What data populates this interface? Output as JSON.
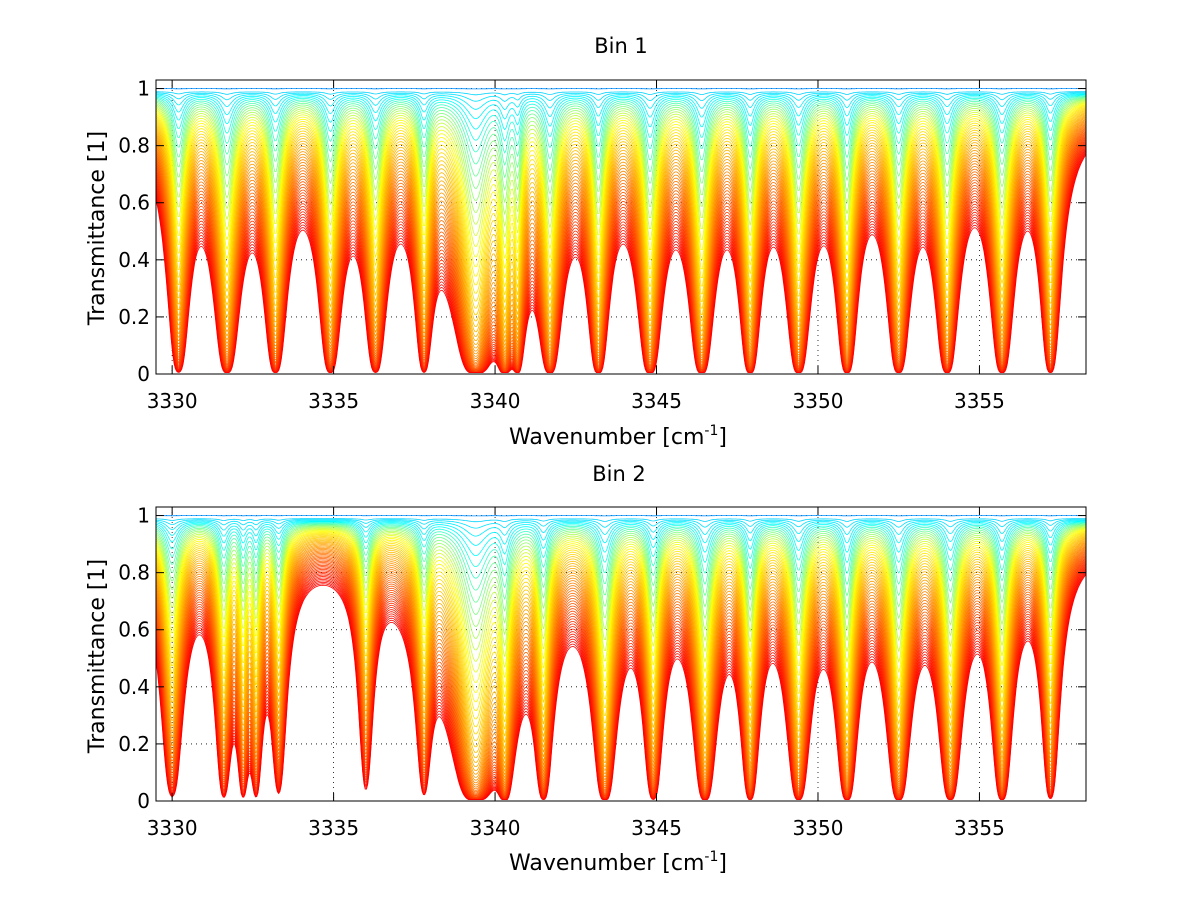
{
  "chart_data": [
    {
      "type": "line",
      "title": "Bin 1",
      "xlabel": "Wavenumber [cm",
      "xlabel_superscript": "-1",
      "xlabel_suffix": "]",
      "ylabel": "Transmittance [1]",
      "xlim": [
        3329.5,
        3358.3
      ],
      "ylim": [
        0,
        1.03
      ],
      "xticks": [
        3330,
        3335,
        3340,
        3345,
        3350,
        3355
      ],
      "xtick_labels": [
        "3330",
        "3335",
        "3340",
        "3345",
        "3350",
        "3355"
      ],
      "yticks": [
        0,
        0.2,
        0.4,
        0.6,
        0.8,
        1
      ],
      "ytick_labels": [
        "0",
        "0.2",
        "0.4",
        "0.6",
        "0.8",
        "1"
      ],
      "grid": true,
      "n_curves": 60,
      "colormap": [
        "#0000ff",
        "#00bfff",
        "#00ffff",
        "#ffff00",
        "#ff8000",
        "#ff0000"
      ],
      "absorption_lines": [
        {
          "x": 3330.2,
          "depth": 0.75,
          "width": 0.18
        },
        {
          "x": 3331.7,
          "depth": 0.85,
          "width": 0.2
        },
        {
          "x": 3333.2,
          "depth": 0.8,
          "width": 0.18
        },
        {
          "x": 3334.9,
          "depth": 0.8,
          "width": 0.18
        },
        {
          "x": 3336.3,
          "depth": 0.75,
          "width": 0.18
        },
        {
          "x": 3337.8,
          "depth": 0.7,
          "width": 0.15
        },
        {
          "x": 3339.4,
          "depth": 1.0,
          "width": 0.35
        },
        {
          "x": 3340.3,
          "depth": 0.85,
          "width": 0.15
        },
        {
          "x": 3340.7,
          "depth": 0.7,
          "width": 0.12
        },
        {
          "x": 3341.7,
          "depth": 0.9,
          "width": 0.18
        },
        {
          "x": 3343.2,
          "depth": 0.9,
          "width": 0.16
        },
        {
          "x": 3344.8,
          "depth": 0.95,
          "width": 0.18
        },
        {
          "x": 3346.4,
          "depth": 0.95,
          "width": 0.18
        },
        {
          "x": 3347.9,
          "depth": 0.9,
          "width": 0.16
        },
        {
          "x": 3349.4,
          "depth": 0.9,
          "width": 0.18
        },
        {
          "x": 3350.9,
          "depth": 0.9,
          "width": 0.16
        },
        {
          "x": 3352.5,
          "depth": 0.85,
          "width": 0.18
        },
        {
          "x": 3354.0,
          "depth": 0.85,
          "width": 0.18
        },
        {
          "x": 3355.7,
          "depth": 0.85,
          "width": 0.18
        },
        {
          "x": 3357.2,
          "depth": 0.8,
          "width": 0.16
        }
      ]
    },
    {
      "type": "line",
      "title": "Bin 2",
      "xlabel": "Wavenumber [cm",
      "xlabel_superscript": "-1",
      "xlabel_suffix": "]",
      "ylabel": "Transmittance [1]",
      "xlim": [
        3329.5,
        3358.3
      ],
      "ylim": [
        0,
        1.03
      ],
      "xticks": [
        3330,
        3335,
        3340,
        3345,
        3350,
        3355
      ],
      "xtick_labels": [
        "3330",
        "3335",
        "3340",
        "3345",
        "3350",
        "3355"
      ],
      "yticks": [
        0,
        0.2,
        0.4,
        0.6,
        0.8,
        1
      ],
      "ytick_labels": [
        "0",
        "0.2",
        "0.4",
        "0.6",
        "0.8",
        "1"
      ],
      "grid": true,
      "n_curves": 60,
      "colormap": [
        "#0000ff",
        "#00bfff",
        "#00ffff",
        "#ffff00",
        "#ff8000",
        "#ff0000"
      ],
      "absorption_lines": [
        {
          "x": 3330.0,
          "depth": 0.6,
          "width": 0.2
        },
        {
          "x": 3331.6,
          "depth": 0.6,
          "width": 0.15
        },
        {
          "x": 3332.2,
          "depth": 0.55,
          "width": 0.12
        },
        {
          "x": 3332.6,
          "depth": 0.55,
          "width": 0.12
        },
        {
          "x": 3333.3,
          "depth": 0.5,
          "width": 0.15
        },
        {
          "x": 3336.0,
          "depth": 0.45,
          "width": 0.15
        },
        {
          "x": 3337.8,
          "depth": 0.5,
          "width": 0.15
        },
        {
          "x": 3339.4,
          "depth": 1.0,
          "width": 0.4
        },
        {
          "x": 3340.3,
          "depth": 0.8,
          "width": 0.15
        },
        {
          "x": 3341.5,
          "depth": 0.75,
          "width": 0.15
        },
        {
          "x": 3343.4,
          "depth": 0.9,
          "width": 0.18
        },
        {
          "x": 3344.9,
          "depth": 0.75,
          "width": 0.16
        },
        {
          "x": 3346.5,
          "depth": 0.9,
          "width": 0.18
        },
        {
          "x": 3347.9,
          "depth": 0.8,
          "width": 0.15
        },
        {
          "x": 3349.4,
          "depth": 0.85,
          "width": 0.18
        },
        {
          "x": 3350.9,
          "depth": 0.9,
          "width": 0.16
        },
        {
          "x": 3352.5,
          "depth": 0.9,
          "width": 0.18
        },
        {
          "x": 3354.1,
          "depth": 0.85,
          "width": 0.18
        },
        {
          "x": 3355.7,
          "depth": 0.85,
          "width": 0.16
        },
        {
          "x": 3357.2,
          "depth": 0.7,
          "width": 0.15
        }
      ]
    }
  ]
}
